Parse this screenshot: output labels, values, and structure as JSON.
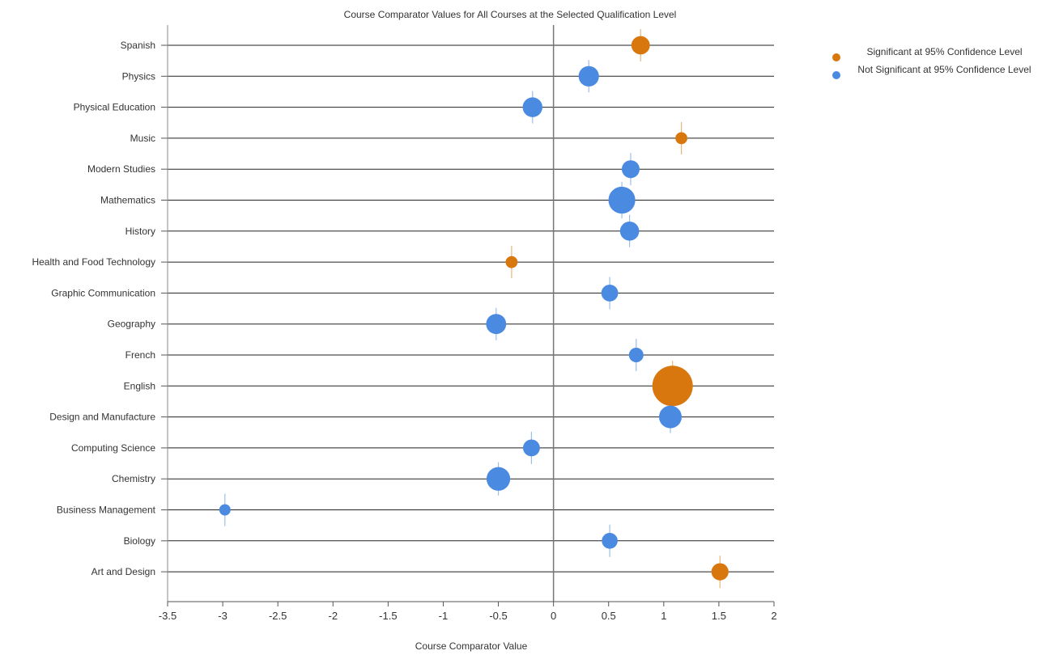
{
  "chart_data": {
    "type": "scatter",
    "title": "Course Comparator Values for All Courses at the Selected Qualification Level",
    "xlabel": "Course Comparator Value",
    "ylabel": "",
    "xlim": [
      -3.5,
      2
    ],
    "xticks": [
      "-3.5",
      "-3",
      "-2.5",
      "-2",
      "-1.5",
      "-1",
      "-0.5",
      "0",
      "0.5",
      "1",
      "1.5",
      "2"
    ],
    "grid": "horizontal lines per course, vertical line at 0",
    "legend_position": "top-right",
    "categories": [
      "Spanish",
      "Physics",
      "Physical Education",
      "Music",
      "Modern Studies",
      "Mathematics",
      "History",
      "Health and Food Technology",
      "Graphic Communication",
      "Geography",
      "French",
      "English",
      "Design and Manufacture",
      "Computing Science",
      "Chemistry",
      "Business Management",
      "Biology",
      "Art and Design"
    ],
    "legend": [
      {
        "label": "Significant at 95% Confidence Level",
        "color": "#d9770f",
        "key": "sig"
      },
      {
        "label": "Not Significant at 95% Confidence Level",
        "color": "#4a8ae0",
        "key": "notsig"
      }
    ],
    "points": [
      {
        "course": "Spanish",
        "value": 0.79,
        "low": 0.73,
        "high": 0.85,
        "significant": true,
        "size": 0.32
      },
      {
        "course": "Physics",
        "value": 0.32,
        "low": 0.31,
        "high": 0.34,
        "significant": false,
        "size": 0.38
      },
      {
        "course": "Physical Education",
        "value": -0.19,
        "low": -0.2,
        "high": -0.18,
        "significant": false,
        "size": 0.36
      },
      {
        "course": "Music",
        "value": 1.16,
        "low": 1.15,
        "high": 1.17,
        "significant": true,
        "size": 0.12
      },
      {
        "course": "Modern Studies",
        "value": 0.7,
        "low": 0.69,
        "high": 0.71,
        "significant": false,
        "size": 0.3
      },
      {
        "course": "Mathematics",
        "value": 0.62,
        "low": 0.61,
        "high": 0.63,
        "significant": false,
        "size": 0.58
      },
      {
        "course": "History",
        "value": 0.69,
        "low": 0.68,
        "high": 0.7,
        "significant": false,
        "size": 0.34
      },
      {
        "course": "Health and Food Technology",
        "value": -0.38,
        "low": -0.39,
        "high": -0.37,
        "significant": true,
        "size": 0.12
      },
      {
        "course": "Graphic Communication",
        "value": 0.51,
        "low": 0.5,
        "high": 0.52,
        "significant": false,
        "size": 0.27
      },
      {
        "course": "Geography",
        "value": -0.52,
        "low": -0.53,
        "high": -0.51,
        "significant": false,
        "size": 0.37
      },
      {
        "course": "French",
        "value": 0.75,
        "low": 0.74,
        "high": 0.76,
        "significant": false,
        "size": 0.2
      },
      {
        "course": "English",
        "value": 1.08,
        "low": 1.07,
        "high": 1.09,
        "significant": true,
        "size": 1.0
      },
      {
        "course": "Design and Manufacture",
        "value": 1.06,
        "low": 1.05,
        "high": 1.07,
        "significant": false,
        "size": 0.45
      },
      {
        "course": "Computing Science",
        "value": -0.2,
        "low": -0.21,
        "high": -0.19,
        "significant": false,
        "size": 0.27
      },
      {
        "course": "Chemistry",
        "value": -0.5,
        "low": -0.51,
        "high": -0.49,
        "significant": false,
        "size": 0.48
      },
      {
        "course": "Business Management",
        "value": -2.98,
        "low": -2.99,
        "high": -2.97,
        "significant": false,
        "size": 0.1
      },
      {
        "course": "Biology",
        "value": 0.51,
        "low": 0.5,
        "high": 0.52,
        "significant": false,
        "size": 0.24
      },
      {
        "course": "Art and Design",
        "value": 1.51,
        "low": 1.5,
        "high": 1.52,
        "significant": true,
        "size": 0.28
      }
    ]
  }
}
